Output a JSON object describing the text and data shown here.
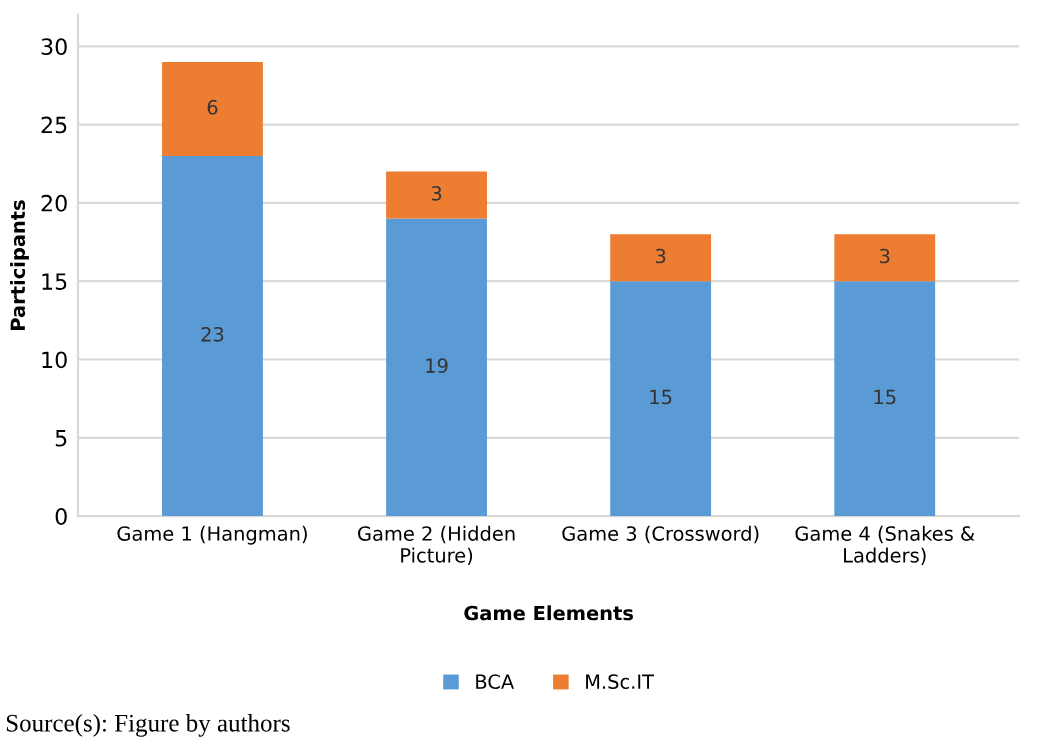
{
  "chart_data": {
    "type": "bar",
    "stacked": true,
    "categories": [
      "Game 1 (Hangman)",
      "Game 2 (Hidden\nPicture)",
      "Game 3 (Crossword)",
      "Game 4 (Snakes &\nLadders)"
    ],
    "series": [
      {
        "name": "BCA",
        "color": "#5b9bd5",
        "values": [
          23,
          19,
          15,
          15
        ]
      },
      {
        "name": "M.Sc.IT",
        "color": "#ed7d31",
        "values": [
          6,
          3,
          3,
          3
        ]
      }
    ],
    "ylim": [
      0,
      32
    ],
    "yticks": [
      0,
      5,
      10,
      15,
      20,
      25,
      30
    ],
    "grid": "y",
    "xlabel": "Game Elements",
    "ylabel": "Participants",
    "data_labels": true,
    "legend": "bottom",
    "annotations": [
      "Source(s): Figure by authors"
    ]
  }
}
